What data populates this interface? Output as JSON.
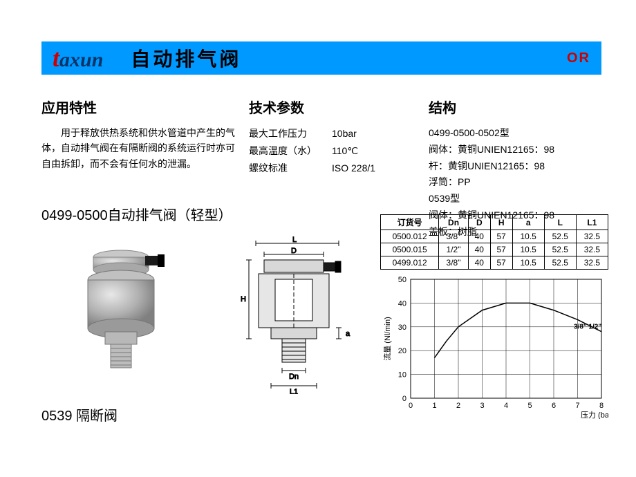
{
  "header": {
    "logo_prefix": "t",
    "logo_rest": "axun",
    "title": "自动排气阀",
    "right_badge": "OR"
  },
  "app_section": {
    "title": "应用特性",
    "body": "用于释放供热系统和供水管道中产生的气体，自动排气阀在有隔断阀的系统运行时亦可自由拆卸，而不会有任何水的泄漏。"
  },
  "tech_section": {
    "title": "技术参数",
    "rows": [
      {
        "label": "最大工作压力",
        "value": "10bar"
      },
      {
        "label": "最高温度（水）",
        "value": "110℃"
      },
      {
        "label": "螺纹标准",
        "value": "ISO 228/1"
      }
    ]
  },
  "struct_section": {
    "title": "结构",
    "lines": [
      "0499-0500-0502型",
      "阀体：黄铜UNIEN12165：98",
      "杆：黄铜UNIEN12165：98",
      "浮筒：PP",
      "0539型",
      "阀体：黄铜UNIEN12165：98",
      "盖板：树脂"
    ]
  },
  "sub_heading": "0499-0500自动排气阀（轻型）",
  "bottom_label": "0539 隔断阀",
  "data_table": {
    "columns": [
      "订货号",
      "Dn",
      "D",
      "H",
      "a",
      "L",
      "L1"
    ],
    "rows": [
      [
        "0500.012",
        "3/8\"",
        "40",
        "57",
        "10.5",
        "52.5",
        "32.5"
      ],
      [
        "0500.015",
        "1/2\"",
        "40",
        "57",
        "10.5",
        "52.5",
        "32.5"
      ],
      [
        "0499.012",
        "3/8\"",
        "40",
        "57",
        "10.5",
        "52.5",
        "32.5"
      ]
    ]
  },
  "chart": {
    "type": "line",
    "x_label": "压力 (bar)",
    "y_label": "流量 (Nl/min)",
    "x_ticks": [
      0,
      1,
      2,
      3,
      4,
      5,
      6,
      7,
      8
    ],
    "y_ticks": [
      0,
      10,
      20,
      30,
      40,
      50
    ],
    "xlim": [
      0,
      8
    ],
    "ylim": [
      0,
      50
    ],
    "series_label": "3/8\" 1/2\"",
    "points": [
      {
        "x": 1.0,
        "y": 17
      },
      {
        "x": 1.5,
        "y": 24
      },
      {
        "x": 2.0,
        "y": 30
      },
      {
        "x": 3.0,
        "y": 37
      },
      {
        "x": 4.0,
        "y": 40
      },
      {
        "x": 5.0,
        "y": 40
      },
      {
        "x": 6.0,
        "y": 37
      },
      {
        "x": 7.0,
        "y": 33
      },
      {
        "x": 8.0,
        "y": 28
      }
    ],
    "line_color": "#000000",
    "grid_color": "#000000",
    "background_color": "#ffffff",
    "axis_fontsize": 11,
    "label_fontsize": 11
  },
  "drawing": {
    "labels": [
      "L",
      "D",
      "H",
      "a",
      "Dn",
      "L1"
    ]
  },
  "colors": {
    "header_bg": "#0099ff",
    "logo_accent": "#cc0000",
    "logo_main": "#003366",
    "text": "#000000",
    "valve_body": "#b8b8b8",
    "valve_shadow": "#888888",
    "valve_cap": "#222222"
  }
}
